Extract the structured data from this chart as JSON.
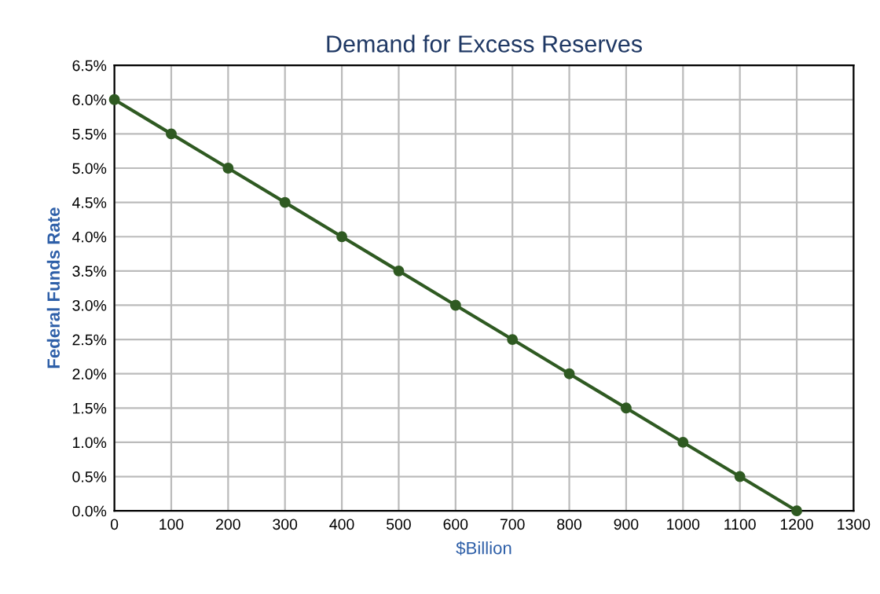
{
  "chart_data": {
    "type": "line",
    "title": "Demand for Excess Reserves",
    "xlabel": "$Billion",
    "ylabel": "Federal Funds Rate",
    "x": [
      0,
      100,
      200,
      300,
      400,
      500,
      600,
      700,
      800,
      900,
      1000,
      1100,
      1200
    ],
    "series": [
      {
        "color": "#2f5a22",
        "values": [
          6.0,
          5.5,
          5.0,
          4.5,
          4.0,
          3.5,
          3.0,
          2.5,
          2.0,
          1.5,
          1.0,
          0.5,
          0.0
        ]
      }
    ],
    "xlim": [
      0,
      1300
    ],
    "xticks": [
      0,
      100,
      200,
      300,
      400,
      500,
      600,
      700,
      800,
      900,
      1000,
      1100,
      1200,
      1300
    ],
    "ylim": [
      0,
      6.5
    ],
    "yticks": [
      {
        "value": 0,
        "label": "0.0%"
      },
      {
        "value": 0.5,
        "label": "0.5%"
      },
      {
        "value": 1.0,
        "label": "1.0%"
      },
      {
        "value": 1.5,
        "label": "1.5%"
      },
      {
        "value": 2.0,
        "label": "2.0%"
      },
      {
        "value": 2.5,
        "label": "2.5%"
      },
      {
        "value": 3.0,
        "label": "3.0%"
      },
      {
        "value": 3.5,
        "label": "3.5%"
      },
      {
        "value": 4.0,
        "label": "4.0%"
      },
      {
        "value": 4.5,
        "label": "4.5%"
      },
      {
        "value": 5.0,
        "label": "5.0%"
      },
      {
        "value": 5.5,
        "label": "5.5%"
      },
      {
        "value": 6.0,
        "label": "6.0%"
      },
      {
        "value": 6.5,
        "label": "6.5%"
      }
    ],
    "grid": true,
    "marker": "circle",
    "line_style": "solid"
  }
}
